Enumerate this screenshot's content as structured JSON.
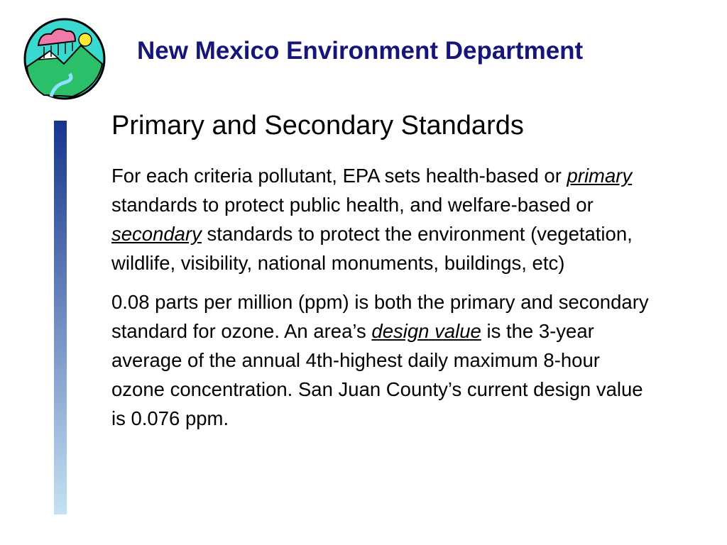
{
  "header": {
    "title": "New Mexico Environment Department"
  },
  "slide": {
    "heading": "Primary and Secondary Standards",
    "paragraphs": [
      [
        "For each criteria pollutant, EPA sets health-based or ",
        "primary",
        " standards to protect public health, and welfare-based or ",
        "secondary",
        " standards to protect the environment (vegetation, wildlife, visibility, national monuments, buildings, etc)"
      ],
      [
        "0.08 parts per million (ppm) is both the primary and secondary standard for ozone.  An area’s ",
        "design value",
        " is the 3-year average of the annual 4th-highest daily maximum 8-hour ozone concentration.  San Juan County’s current design value is 0.076 ppm."
      ]
    ]
  }
}
